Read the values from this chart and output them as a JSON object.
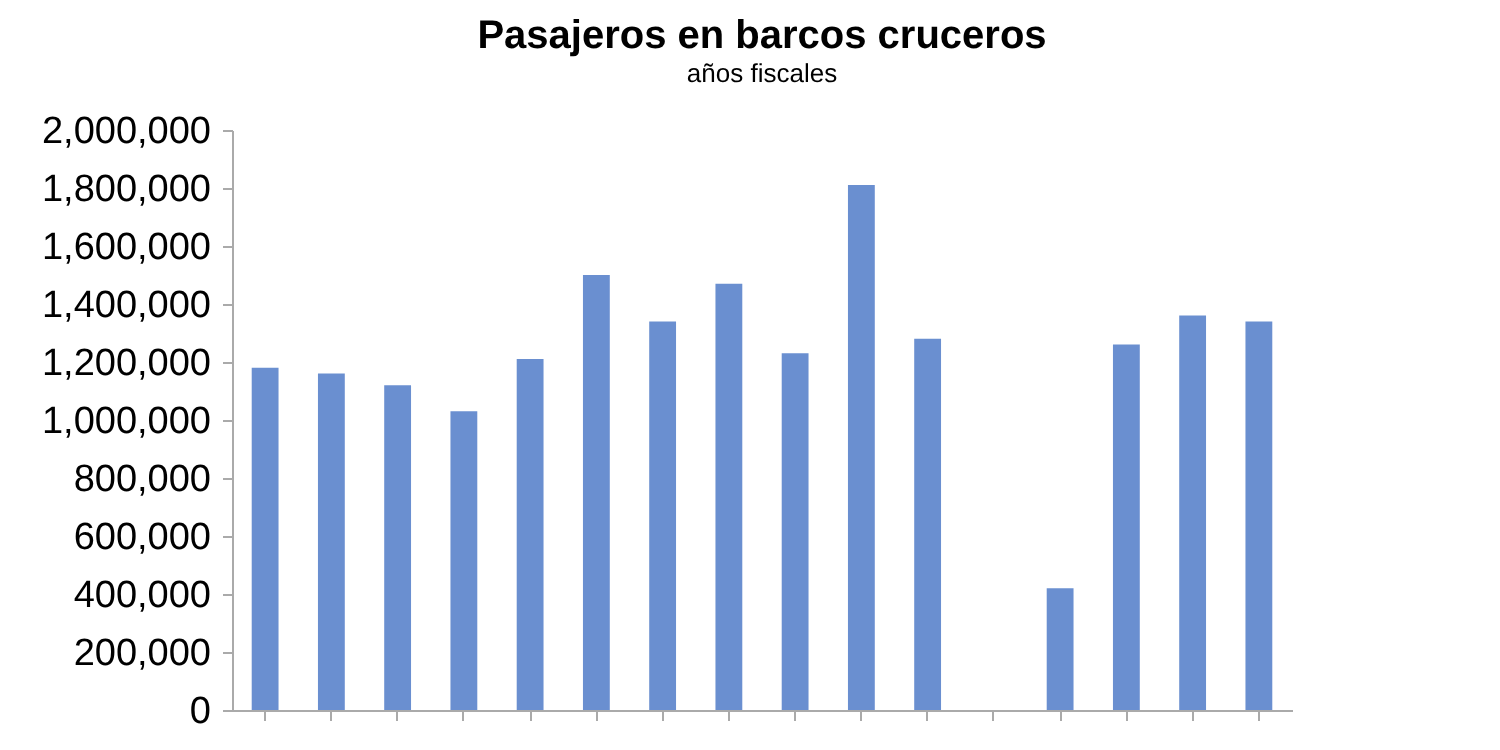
{
  "chart_data": {
    "type": "bar",
    "title": "Pasajeros en barcos cruceros",
    "subtitle": "años fiscales",
    "categories": [
      null,
      null,
      null,
      null,
      null,
      null,
      null,
      null,
      null,
      null,
      null,
      null,
      null,
      null,
      null,
      null
    ],
    "values": [
      1180000,
      1160000,
      1120000,
      1030000,
      1210000,
      1500000,
      1340000,
      1470000,
      1230000,
      1810000,
      1280000,
      null,
      420000,
      1260000,
      1360000,
      1340000
    ],
    "color": "#6a8fd0",
    "ylim": [
      0,
      2000000
    ],
    "yticks": [
      0,
      {
        "value": 200000,
        "label": "200,000"
      },
      {
        "value": 400000,
        "label": "400,000"
      },
      {
        "value": 600000,
        "label": "600,000"
      },
      {
        "value": 800000,
        "label": "800,000"
      },
      {
        "value": 1000000,
        "label": "1,000,000"
      },
      {
        "value": 1200000,
        "label": "1,200,000"
      },
      {
        "value": 1400000,
        "label": "1,400,000"
      },
      {
        "value": 1600000,
        "label": "1,600,000"
      },
      {
        "value": 1800000,
        "label": "1,800,000"
      },
      {
        "value": 2000000,
        "label": "2,000,000"
      }
    ],
    "grid": false,
    "tick_labels": "y"
  }
}
